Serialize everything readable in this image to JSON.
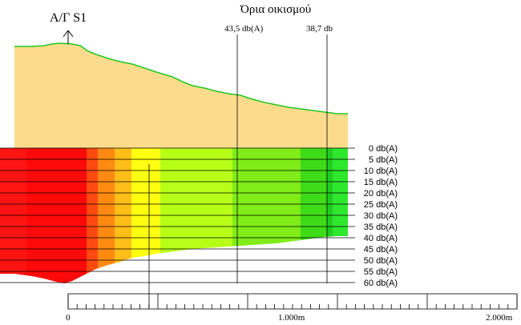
{
  "turbine_label": "Α/Γ S1",
  "settlement_title": "Όρια οικισμού",
  "markers": [
    {
      "label": "43,5 db(A)"
    },
    {
      "label": "38,7 db"
    }
  ],
  "noise_levels": [
    "0 db(A)",
    "5 db(A)",
    "10 db(A)",
    "15 db(A)",
    "20 db(A)",
    "25 db(A)",
    "30 db(A)",
    "35 db(A)",
    "40 db(A)",
    "45 db(A)",
    "50 db(A)",
    "55 db(A)",
    "60 db(A)"
  ],
  "scale": {
    "labels": [
      "0",
      "1.000m",
      "2.000m"
    ]
  },
  "colors": {
    "terrain_fill": "#FCDC8C",
    "terrain_outline": "#22C722",
    "zones": [
      "#FF1010",
      "#FF4A10",
      "#FF8C10",
      "#FFC818",
      "#FFFF10",
      "#B4FF18",
      "#78EE18",
      "#3CDD18",
      "#22EE22"
    ]
  }
}
